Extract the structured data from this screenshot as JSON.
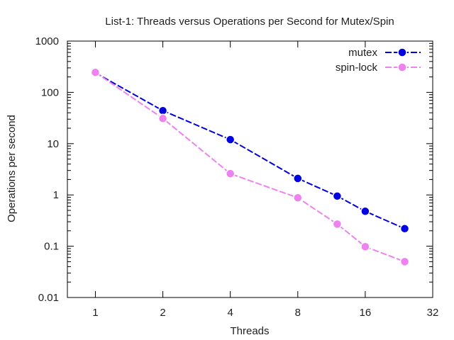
{
  "chart_data": {
    "type": "line",
    "title": "List-1: Threads versus Operations per Second for Mutex/Spin",
    "xlabel": "Threads",
    "ylabel": "Operations per second",
    "x_scale": "log2",
    "y_scale": "log10",
    "xlim": [
      0.75,
      32
    ],
    "ylim": [
      0.01,
      1000
    ],
    "x_ticks": [
      1,
      2,
      4,
      8,
      16,
      32
    ],
    "x_tick_labels": [
      "1",
      "2",
      "4",
      "8",
      "16",
      "32"
    ],
    "y_ticks": [
      0.01,
      0.1,
      1,
      10,
      100,
      1000
    ],
    "y_tick_labels": [
      "0.01",
      "0.1",
      "1",
      "10",
      "100",
      "1000"
    ],
    "grid": false,
    "legend_position": "top-right",
    "series": [
      {
        "name": "mutex",
        "color": "#0000e0",
        "style": "dashed line with filled circle markers",
        "x": [
          1,
          2,
          4,
          8,
          12,
          16,
          24
        ],
        "y": [
          240,
          44,
          12,
          2.1,
          0.95,
          0.48,
          0.22
        ]
      },
      {
        "name": "spin-lock",
        "color": "#ee82ee",
        "style": "dashed line with filled circle markers",
        "x": [
          1,
          2,
          4,
          8,
          12,
          16,
          24
        ],
        "y": [
          245,
          31,
          2.6,
          0.88,
          0.27,
          0.098,
          0.05
        ]
      }
    ]
  }
}
